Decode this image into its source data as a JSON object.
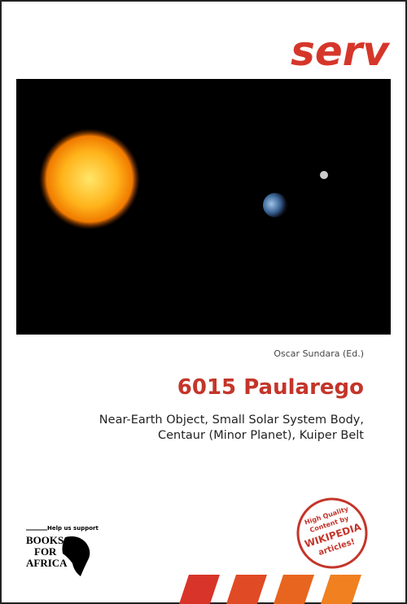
{
  "publisher": "serv",
  "editor": "Oscar Sundara (Ed.)",
  "title": "6015 Paularego",
  "subtitle_lines": [
    "Near-Earth Object, Small Solar System Body,",
    "Centaur (Minor Planet), Kuiper Belt"
  ],
  "support": {
    "note": "Help us support",
    "logo_lines": [
      "BOOKS",
      "FOR",
      "AFRICA"
    ]
  },
  "badge_lines": [
    "High Quality",
    "Content by",
    "WIKIPEDIA",
    "articles!"
  ]
}
